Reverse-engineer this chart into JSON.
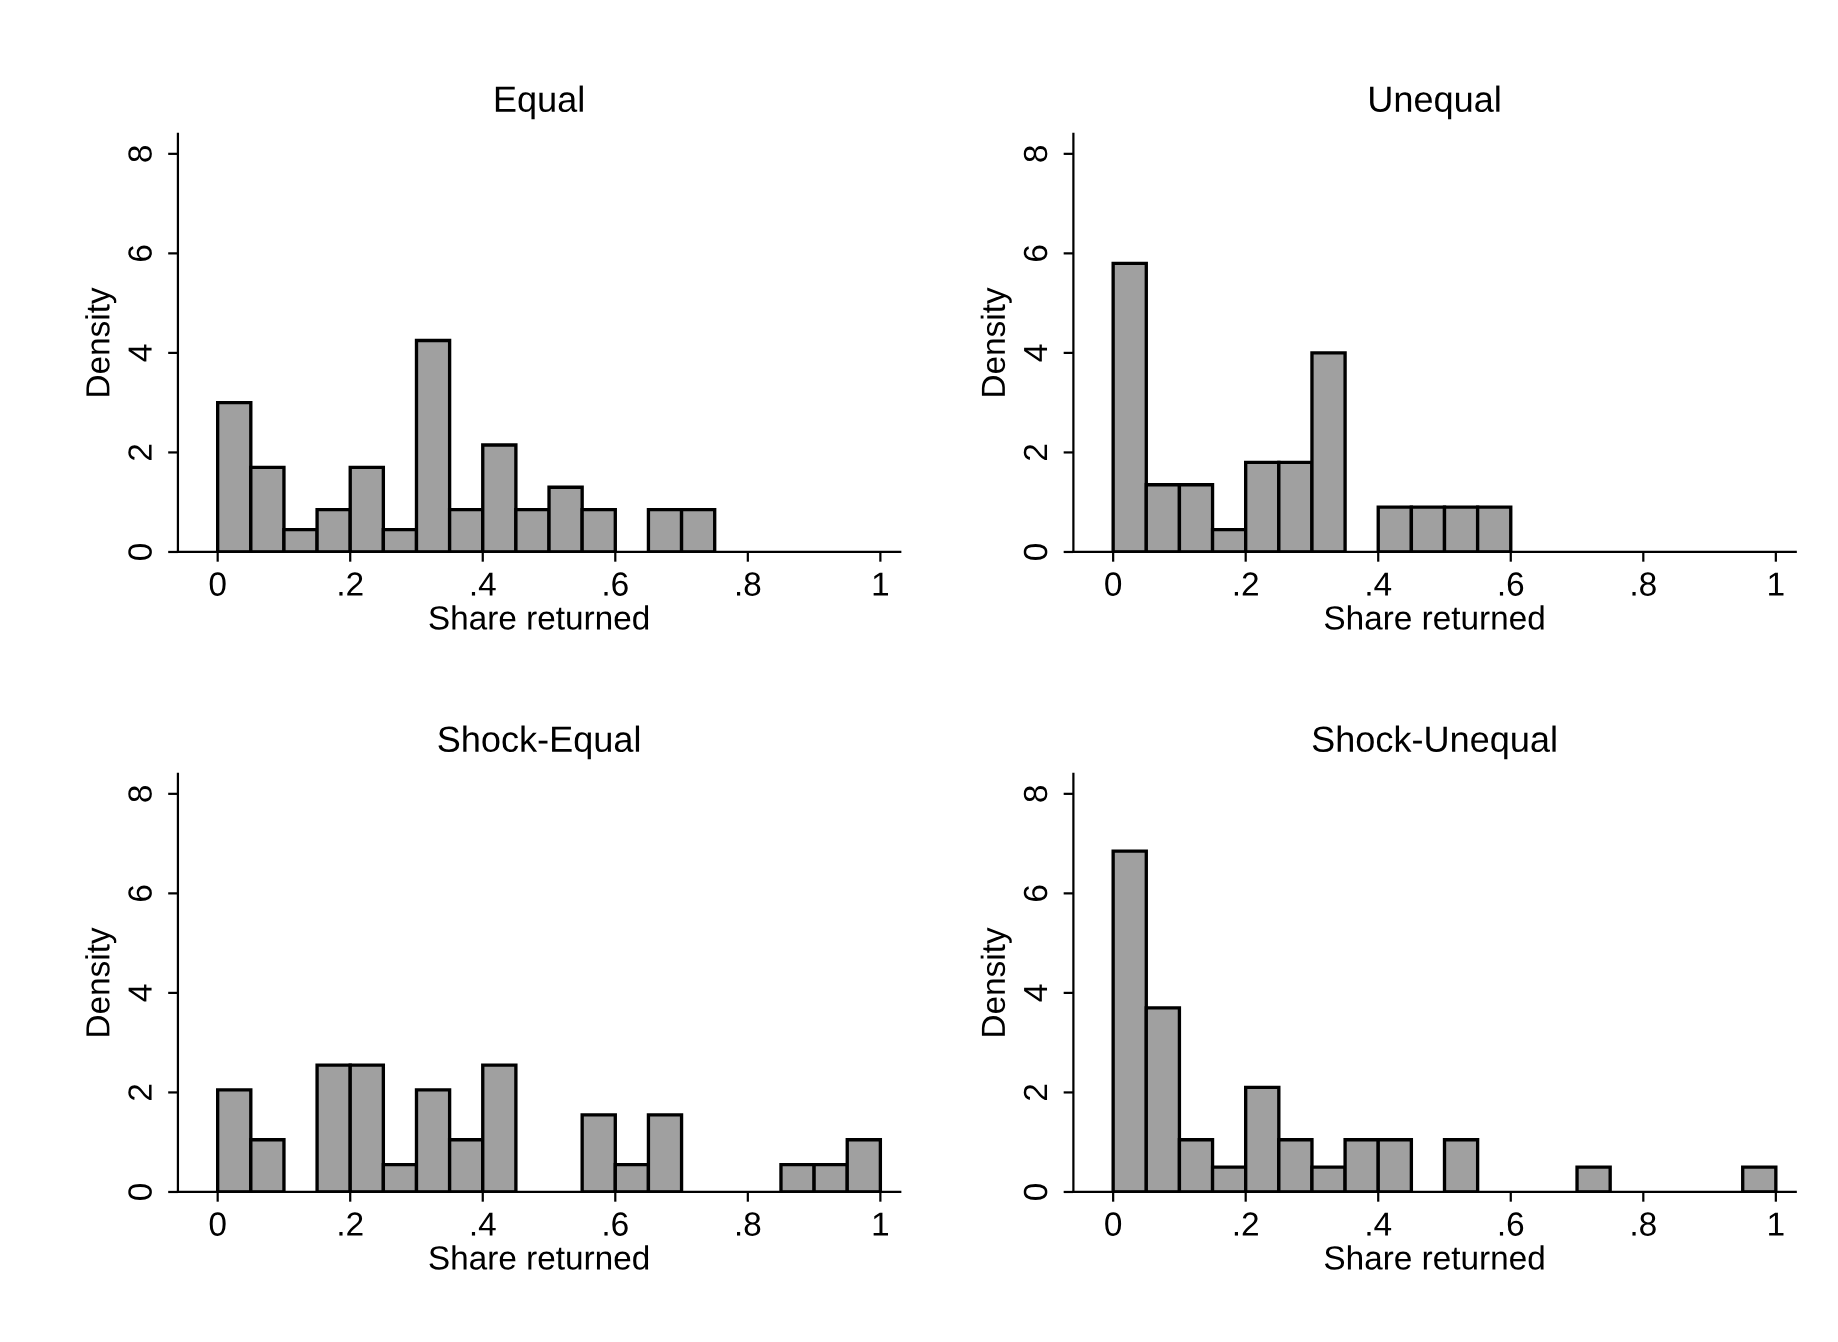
{
  "chart_data": [
    {
      "type": "histogram",
      "title": "Equal",
      "xlabel": "Share returned",
      "ylabel": "Density",
      "color": "#a0a0a0",
      "bins": [
        0,
        0.05,
        0.1,
        0.15,
        0.2,
        0.25,
        0.3,
        0.35,
        0.4,
        0.45,
        0.5,
        0.55,
        0.6,
        0.65,
        0.7,
        0.75
      ],
      "values": [
        3.0,
        1.7,
        0.45,
        0.85,
        1.7,
        0.45,
        4.25,
        0.85,
        2.15,
        0.85,
        1.3,
        0.85,
        0,
        0.85,
        0.85
      ],
      "xlim": [
        -0.06,
        1.03
      ],
      "ylim": [
        0,
        8.4
      ],
      "xticks": [
        0,
        {
          "value": 0.2,
          "label": ".2"
        },
        {
          "value": 0.4,
          "label": ".4"
        },
        {
          "value": 0.6,
          "label": ".6"
        },
        {
          "value": 0.8,
          "label": ".8"
        },
        1
      ],
      "yticks": [
        0,
        2,
        4,
        6,
        8
      ],
      "grid": false
    },
    {
      "type": "histogram",
      "title": "Unequal",
      "xlabel": "Share returned",
      "ylabel": "Density",
      "color": "#a0a0a0",
      "bins": [
        0,
        0.05,
        0.1,
        0.15,
        0.2,
        0.25,
        0.3,
        0.35,
        0.4,
        0.45,
        0.5,
        0.55,
        0.6
      ],
      "values": [
        5.8,
        1.35,
        1.35,
        0.45,
        1.8,
        1.8,
        4.0,
        0,
        0.9,
        0.9,
        0.9,
        0.9
      ],
      "xlim": [
        -0.06,
        1.03
      ],
      "ylim": [
        0,
        8.4
      ],
      "xticks": [
        0,
        {
          "value": 0.2,
          "label": ".2"
        },
        {
          "value": 0.4,
          "label": ".4"
        },
        {
          "value": 0.6,
          "label": ".6"
        },
        {
          "value": 0.8,
          "label": ".8"
        },
        1
      ],
      "yticks": [
        0,
        2,
        4,
        6,
        8
      ],
      "grid": false
    },
    {
      "type": "histogram",
      "title": "Shock-Equal",
      "xlabel": "Share returned",
      "ylabel": "Density",
      "color": "#a0a0a0",
      "bins": [
        0,
        0.05,
        0.1,
        0.15,
        0.2,
        0.25,
        0.3,
        0.35,
        0.4,
        0.45,
        0.5,
        0.55,
        0.6,
        0.65,
        0.7,
        0.75,
        0.8,
        0.85,
        0.9,
        0.95,
        1.0
      ],
      "values": [
        2.05,
        1.05,
        0,
        2.55,
        2.55,
        0.55,
        2.05,
        1.05,
        2.55,
        0,
        0,
        1.55,
        0.55,
        1.55,
        0,
        0,
        0,
        0.55,
        0.55,
        1.05
      ],
      "xlim": [
        -0.06,
        1.03
      ],
      "ylim": [
        0,
        8.4
      ],
      "xticks": [
        0,
        {
          "value": 0.2,
          "label": ".2"
        },
        {
          "value": 0.4,
          "label": ".4"
        },
        {
          "value": 0.6,
          "label": ".6"
        },
        {
          "value": 0.8,
          "label": ".8"
        },
        1
      ],
      "yticks": [
        0,
        2,
        4,
        6,
        8
      ],
      "grid": false
    },
    {
      "type": "histogram",
      "title": "Shock-Unequal",
      "xlabel": "Share returned",
      "ylabel": "Density",
      "color": "#a0a0a0",
      "bins": [
        0,
        0.05,
        0.1,
        0.15,
        0.2,
        0.25,
        0.3,
        0.35,
        0.4,
        0.45,
        0.5,
        0.55,
        0.6,
        0.65,
        0.7,
        0.75,
        0.8,
        0.85,
        0.9,
        0.95,
        1.0
      ],
      "values": [
        6.85,
        3.7,
        1.05,
        0.5,
        2.1,
        1.05,
        0.5,
        1.05,
        1.05,
        0,
        1.05,
        0,
        0,
        0,
        0.5,
        0,
        0,
        0,
        0,
        0.5
      ],
      "xlim": [
        -0.06,
        1.03
      ],
      "ylim": [
        0,
        8.4
      ],
      "xticks": [
        0,
        {
          "value": 0.2,
          "label": ".2"
        },
        {
          "value": 0.4,
          "label": ".4"
        },
        {
          "value": 0.6,
          "label": ".6"
        },
        {
          "value": 0.8,
          "label": ".8"
        },
        1
      ],
      "yticks": [
        0,
        2,
        4,
        6,
        8
      ],
      "grid": false
    }
  ]
}
